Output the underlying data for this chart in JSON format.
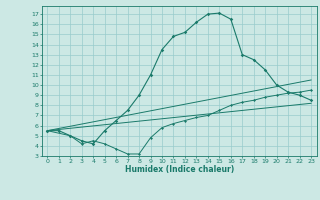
{
  "xlabel": "Humidex (Indice chaleur)",
  "bg_color": "#cce8e4",
  "grid_color": "#99cccc",
  "line_color": "#1a7a6a",
  "xlim": [
    -0.5,
    23.5
  ],
  "ylim": [
    3,
    17.8
  ],
  "xticks": [
    0,
    1,
    2,
    3,
    4,
    5,
    6,
    7,
    8,
    9,
    10,
    11,
    12,
    13,
    14,
    15,
    16,
    17,
    18,
    19,
    20,
    21,
    22,
    23
  ],
  "yticks": [
    3,
    4,
    5,
    6,
    7,
    8,
    9,
    10,
    11,
    12,
    13,
    14,
    15,
    16,
    17
  ],
  "line1_x": [
    0,
    1,
    2,
    3,
    4,
    5,
    6,
    7,
    8,
    9,
    10,
    11,
    12,
    13,
    14,
    15,
    16,
    17,
    18,
    19,
    20,
    21,
    22,
    23
  ],
  "line1_y": [
    5.5,
    5.5,
    5.0,
    4.5,
    4.2,
    5.5,
    6.5,
    7.5,
    9.0,
    11.0,
    13.5,
    14.8,
    15.2,
    16.2,
    17.0,
    17.1,
    16.5,
    13.0,
    12.5,
    11.5,
    10.0,
    9.3,
    9.0,
    8.5
  ],
  "line2_x": [
    0,
    23
  ],
  "line2_y": [
    5.5,
    10.5
  ],
  "line3_x": [
    0,
    23
  ],
  "line3_y": [
    5.5,
    8.2
  ],
  "line4_x": [
    0,
    2,
    3,
    4,
    5,
    6,
    7,
    8,
    9,
    10,
    11,
    12,
    13,
    14,
    15,
    16,
    17,
    18,
    19,
    20,
    21,
    22,
    23
  ],
  "line4_y": [
    5.5,
    5.0,
    4.2,
    4.5,
    4.2,
    3.7,
    3.2,
    3.2,
    4.8,
    5.8,
    6.2,
    6.5,
    6.8,
    7.0,
    7.5,
    8.0,
    8.3,
    8.5,
    8.8,
    9.0,
    9.2,
    9.3,
    9.5
  ]
}
